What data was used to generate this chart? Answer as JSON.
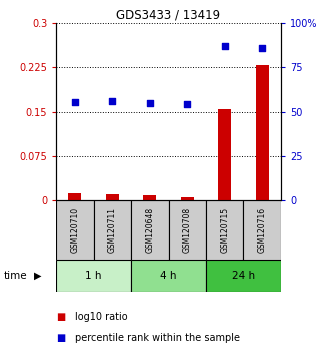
{
  "title": "GDS3433 / 13419",
  "samples": [
    "GSM120710",
    "GSM120711",
    "GSM120648",
    "GSM120708",
    "GSM120715",
    "GSM120716"
  ],
  "log10_ratio": [
    0.012,
    0.01,
    0.008,
    0.005,
    0.155,
    0.228
  ],
  "percentile_rank": [
    55.5,
    55.8,
    54.8,
    54.2,
    86.8,
    85.8
  ],
  "groups": [
    {
      "label": "1 h",
      "samples": [
        0,
        1
      ],
      "color": "#c8f0c8"
    },
    {
      "label": "4 h",
      "samples": [
        2,
        3
      ],
      "color": "#90e090"
    },
    {
      "label": "24 h",
      "samples": [
        4,
        5
      ],
      "color": "#40c040"
    }
  ],
  "left_yticks": [
    0,
    0.075,
    0.15,
    0.225,
    0.3
  ],
  "left_yticklabels": [
    "0",
    "0.075",
    "0.15",
    "0.225",
    "0.3"
  ],
  "right_yticks": [
    0,
    25,
    50,
    75,
    100
  ],
  "right_yticklabels": [
    "0",
    "25",
    "50",
    "75",
    "100%"
  ],
  "bar_color": "#cc0000",
  "dot_color": "#0000cc",
  "left_axis_color": "#cc0000",
  "right_axis_color": "#0000cc",
  "sample_box_color": "#cccccc",
  "legend_entries": [
    "log10 ratio",
    "percentile rank within the sample"
  ],
  "ylim_left": [
    0,
    0.3
  ],
  "ylim_right": [
    0,
    100
  ],
  "bar_width": 0.35
}
